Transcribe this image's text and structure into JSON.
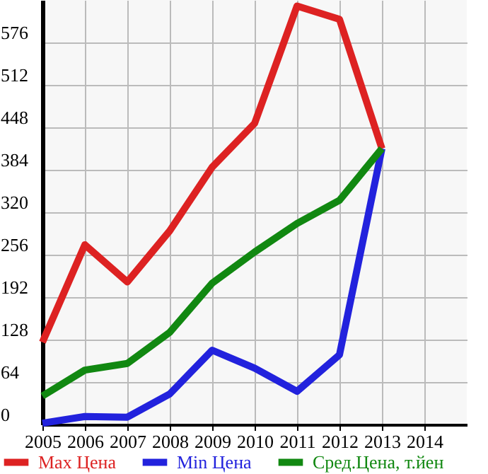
{
  "chart_data": {
    "type": "line",
    "x": [
      2005,
      2006,
      2007,
      2008,
      2009,
      2010,
      2011,
      2012,
      2013
    ],
    "series": [
      {
        "name": "Max Цена",
        "color": "#dd2222",
        "values": [
          124,
          271,
          215,
          292,
          388,
          454,
          631,
          611,
          416
        ]
      },
      {
        "name": "Min Цена",
        "color": "#2222dd",
        "values": [
          2,
          12,
          11,
          46,
          112,
          85,
          50,
          105,
          416
        ]
      },
      {
        "name": "Сред.Цена, т.йен",
        "color": "#118811",
        "values": [
          43,
          82,
          92,
          139,
          213,
          260,
          303,
          338,
          416
        ]
      }
    ],
    "xlim": [
      2005,
      2015
    ],
    "xticks": [
      2005,
      2006,
      2007,
      2008,
      2009,
      2010,
      2011,
      2012,
      2013,
      2014
    ],
    "ylim": [
      0,
      640
    ],
    "yticks": [
      0,
      64,
      128,
      192,
      256,
      320,
      384,
      448,
      512,
      576
    ],
    "grid": true,
    "legend": "bottom",
    "marker": "none",
    "line_style": "solid"
  }
}
